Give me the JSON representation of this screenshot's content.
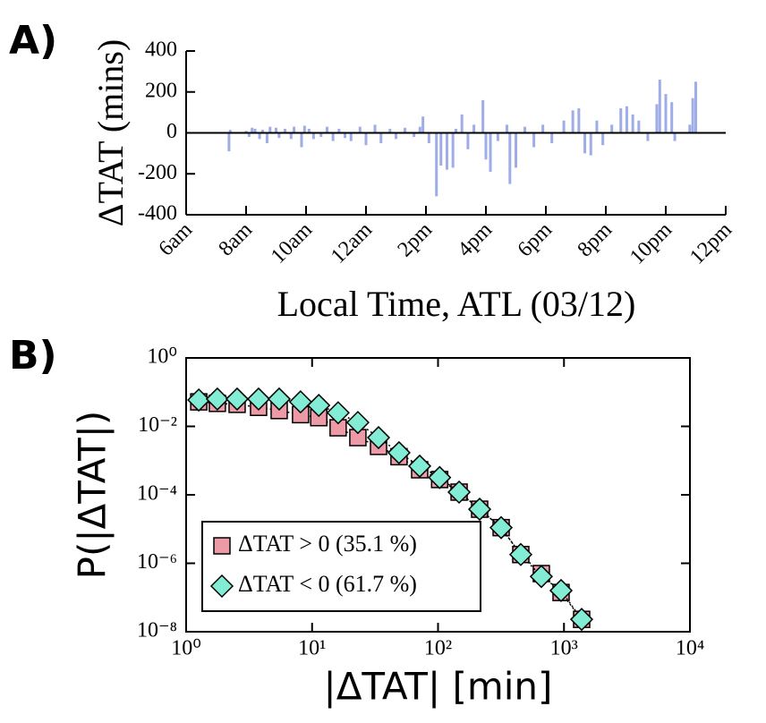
{
  "chart_data": [
    {
      "type": "bar",
      "panel_label": "A)",
      "ylabel": "ΔTAT  (mins)",
      "xlabel": "Local Time, ATL (03/12)",
      "color": "#9eace8",
      "x": [
        7.43,
        7.47,
        8.0,
        8.1,
        8.2,
        8.3,
        8.45,
        8.55,
        8.7,
        8.8,
        9.0,
        9.1,
        9.3,
        9.5,
        9.6,
        9.85,
        9.95,
        10.1,
        10.25,
        10.5,
        10.7,
        10.9,
        11.1,
        11.3,
        11.5,
        11.8,
        12.0,
        12.3,
        12.5,
        12.8,
        13.0,
        13.3,
        13.6,
        13.8,
        13.9,
        14.1,
        14.35,
        14.5,
        14.7,
        14.9,
        15.0,
        15.2,
        15.4,
        15.6,
        15.9,
        16.0,
        16.15,
        16.4,
        16.7,
        16.8,
        17.0,
        17.3,
        17.6,
        17.9,
        18.2,
        18.6,
        18.9,
        19.1,
        19.3,
        19.5,
        19.7,
        19.9,
        20.2,
        20.5,
        20.7,
        20.9,
        21.1,
        21.4,
        21.7,
        21.8,
        22.0,
        22.2,
        22.3,
        22.8,
        22.9,
        23.0
      ],
      "values": [
        -90,
        15,
        10,
        -20,
        25,
        20,
        -30,
        15,
        -50,
        30,
        25,
        -25,
        20,
        -30,
        30,
        -70,
        35,
        20,
        -30,
        -20,
        30,
        -40,
        20,
        -25,
        -40,
        30,
        -60,
        40,
        -50,
        20,
        -30,
        25,
        -20,
        30,
        80,
        -50,
        -310,
        -160,
        -180,
        -170,
        20,
        90,
        -80,
        40,
        160,
        -130,
        -190,
        -40,
        40,
        -250,
        -170,
        30,
        -70,
        40,
        -50,
        60,
        110,
        120,
        -100,
        -110,
        60,
        -60,
        40,
        120,
        130,
        90,
        60,
        -40,
        140,
        260,
        190,
        150,
        -40,
        40,
        170,
        250
      ],
      "xlim": [
        6,
        24
      ],
      "xticks": [
        {
          "value": 6,
          "label": "6am"
        },
        {
          "value": 8,
          "label": "8am"
        },
        {
          "value": 10,
          "label": "10am"
        },
        {
          "value": 12,
          "label": "12am"
        },
        {
          "value": 14,
          "label": "2pm"
        },
        {
          "value": 16,
          "label": "4pm"
        },
        {
          "value": 18,
          "label": "6pm"
        },
        {
          "value": 20,
          "label": "8pm"
        },
        {
          "value": 22,
          "label": "10pm"
        },
        {
          "value": 24,
          "label": "12pm"
        }
      ],
      "ylim": [
        -400,
        400
      ],
      "yticks": [
        400,
        200,
        0,
        -200,
        -400
      ]
    },
    {
      "type": "scatter",
      "panel_label": "B)",
      "ylabel": "P(|ΔTAT|)",
      "xlabel": "|ΔTAT| [min]",
      "xscale": "log",
      "yscale": "log",
      "legend": "lower left",
      "x": [
        1.26,
        1.77,
        2.54,
        3.76,
        5.48,
        8.1,
        11.3,
        16.1,
        23.1,
        33.7,
        49,
        71.5,
        103,
        147,
        214,
        317,
        454,
        661,
        948,
        1381
      ],
      "series": [
        {
          "name": "ΔTAT > 0 (35.1 %)",
          "marker": "square",
          "color": "#eb9aa6",
          "values": [
            0.052,
            0.047,
            0.044,
            0.036,
            0.029,
            0.022,
            0.018,
            0.0091,
            0.0047,
            0.0026,
            0.0013,
            0.00054,
            0.00028,
            0.00012,
            3.8e-05,
            1.1e-05,
            1.8e-06,
            5e-07,
            1.4e-07,
            2.3e-08
          ]
        },
        {
          "name": "ΔTAT < 0 (61.7 %)",
          "marker": "diamond",
          "color": "#82ecd4",
          "values": [
            0.059,
            0.063,
            0.063,
            0.063,
            0.063,
            0.052,
            0.041,
            0.025,
            0.013,
            0.0047,
            0.0017,
            0.00069,
            0.00032,
            0.00012,
            3.8e-05,
            1.1e-05,
            1.8e-06,
            4.1e-07,
            1.6e-07,
            2.3e-08
          ]
        }
      ],
      "xlim": [
        1,
        10000
      ],
      "xticks": [
        {
          "value": 1,
          "label": "10⁰"
        },
        {
          "value": 10,
          "label": "10¹"
        },
        {
          "value": 100,
          "label": "10²"
        },
        {
          "value": 1000,
          "label": "10³"
        },
        {
          "value": 10000,
          "label": "10⁴"
        }
      ],
      "ylim": [
        1e-08,
        1
      ],
      "yticks": [
        {
          "value": 1,
          "label": "10⁰"
        },
        {
          "value": 0.01,
          "label": "10⁻²"
        },
        {
          "value": 0.0001,
          "label": "10⁻⁴"
        },
        {
          "value": 1e-06,
          "label": "10⁻⁶"
        },
        {
          "value": 1e-08,
          "label": "10⁻⁸"
        }
      ]
    }
  ]
}
